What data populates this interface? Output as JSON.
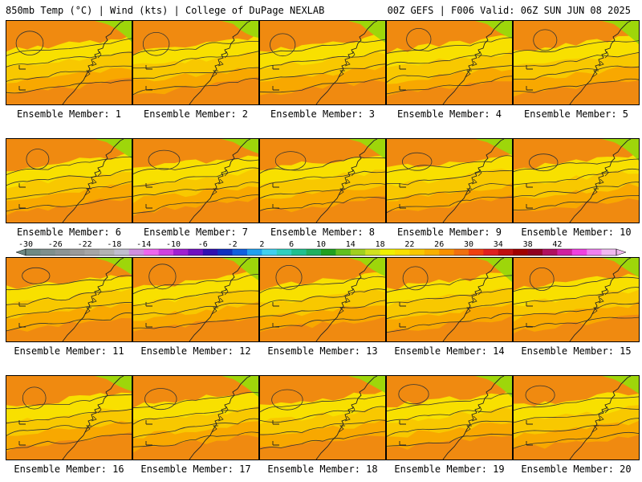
{
  "header": {
    "left": "850mb Temp (°C) | Wind (kts) | College of DuPage NEXLAB",
    "right": "00Z GEFS | F006 Valid: 06Z SUN JUN 08 2025"
  },
  "panel_label_prefix": "Ensemble Member: ",
  "panels": [
    {
      "label": "Ensemble Member: 1"
    },
    {
      "label": "Ensemble Member: 2"
    },
    {
      "label": "Ensemble Member: 3"
    },
    {
      "label": "Ensemble Member: 4"
    },
    {
      "label": "Ensemble Member: 5"
    },
    {
      "label": "Ensemble Member: 6"
    },
    {
      "label": "Ensemble Member: 7"
    },
    {
      "label": "Ensemble Member: 8"
    },
    {
      "label": "Ensemble Member: 9"
    },
    {
      "label": "Ensemble Member: 10"
    },
    {
      "label": "Ensemble Member: 11"
    },
    {
      "label": "Ensemble Member: 12"
    },
    {
      "label": "Ensemble Member: 13"
    },
    {
      "label": "Ensemble Member: 14"
    },
    {
      "label": "Ensemble Member: 15"
    },
    {
      "label": "Ensemble Member: 16"
    },
    {
      "label": "Ensemble Member: 17"
    },
    {
      "label": "Ensemble Member: 18"
    },
    {
      "label": "Ensemble Member: 19"
    },
    {
      "label": "Ensemble Member: 20"
    }
  ],
  "colorbar": {
    "ticks": [
      "-30",
      "-26",
      "-22",
      "-18",
      "-14",
      "-10",
      "-6",
      "-2",
      "2",
      "6",
      "10",
      "14",
      "18",
      "22",
      "26",
      "30",
      "34",
      "38",
      "42"
    ],
    "colors": [
      "#6e8a84",
      "#7f8f8c",
      "#8c9494",
      "#9a9a9a",
      "#a6a6a6",
      "#b3b3b3",
      "#c0bfd0",
      "#d08fe0",
      "#ee66ee",
      "#d040e0",
      "#a020d0",
      "#7010c0",
      "#3010b0",
      "#1030c0",
      "#1060e0",
      "#20a0f0",
      "#40d0f0",
      "#30d0c0",
      "#20c090",
      "#20b060",
      "#20a020",
      "#60c020",
      "#a0d020",
      "#d0e020",
      "#f0f000",
      "#f8e000",
      "#f8c800",
      "#f8b000",
      "#f89000",
      "#f07010",
      "#f04010",
      "#e02020",
      "#c01010",
      "#a00000",
      "#900020",
      "#b01060",
      "#d020a0",
      "#f040e0",
      "#f080f0",
      "#f0b8f0"
    ],
    "range": [
      -30,
      46
    ],
    "step": 2
  },
  "field": {
    "palette_levels": [
      {
        "min": 8,
        "color": "#9ed60a"
      },
      {
        "min": 10,
        "color": "#c8e000"
      },
      {
        "min": 12,
        "color": "#f5f200"
      },
      {
        "min": 14,
        "color": "#f8e000"
      },
      {
        "min": 16,
        "color": "#f8c800"
      },
      {
        "min": 18,
        "color": "#f8a800"
      },
      {
        "min": 20,
        "color": "#f08a10"
      }
    ]
  }
}
